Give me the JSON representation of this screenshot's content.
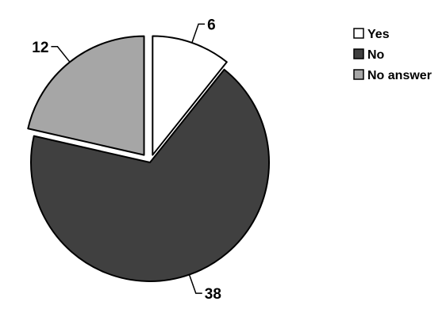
{
  "chart_data": {
    "type": "pie",
    "categories": [
      "Yes",
      "No",
      "No answer"
    ],
    "values": [
      6,
      38,
      12
    ],
    "data_labels": [
      "6",
      "38",
      "12"
    ],
    "colors": [
      "#ffffff",
      "#404040",
      "#a6a6a6"
    ],
    "exploded": true,
    "legend_placement": "right",
    "title": ""
  }
}
